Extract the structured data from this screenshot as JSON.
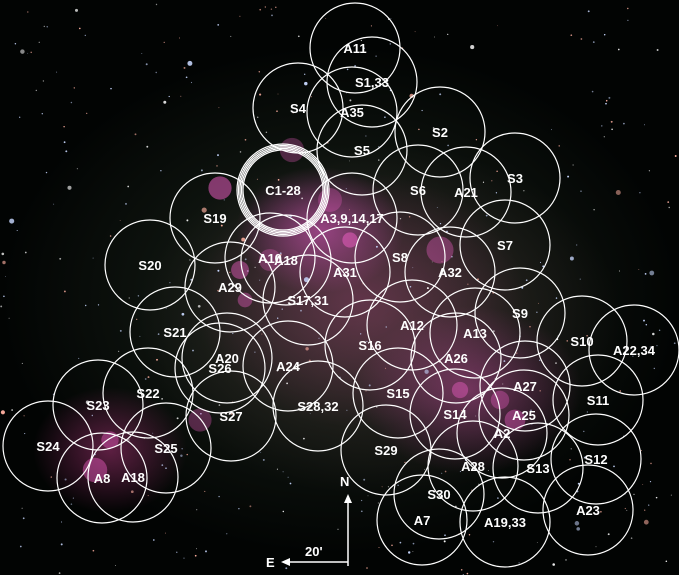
{
  "compass": {
    "north": "N",
    "east": "E",
    "scale": "20'"
  },
  "fields": [
    {
      "label": "A11"
    },
    {
      "label": "S1,33"
    },
    {
      "label": "S4"
    },
    {
      "label": "A35"
    },
    {
      "label": "S2"
    },
    {
      "label": "S5"
    },
    {
      "label": "C1-28"
    },
    {
      "label": "S6"
    },
    {
      "label": "A21"
    },
    {
      "label": "S3"
    },
    {
      "label": "S19"
    },
    {
      "label": "A3,9,14,17"
    },
    {
      "label": "S7"
    },
    {
      "label": "S20"
    },
    {
      "label": "A18"
    },
    {
      "label": "A10"
    },
    {
      "label": "S8"
    },
    {
      "label": "A31"
    },
    {
      "label": "A32"
    },
    {
      "label": "A29"
    },
    {
      "label": "S17,31"
    },
    {
      "label": "S9"
    },
    {
      "label": "S21"
    },
    {
      "label": "A12"
    },
    {
      "label": "A13"
    },
    {
      "label": "S10"
    },
    {
      "label": "A22,34"
    },
    {
      "label": "S16"
    },
    {
      "label": "A20"
    },
    {
      "label": "S26"
    },
    {
      "label": "A24"
    },
    {
      "label": "A26"
    },
    {
      "label": "S22"
    },
    {
      "label": "A27"
    },
    {
      "label": "S15"
    },
    {
      "label": "S23"
    },
    {
      "label": "S28,32"
    },
    {
      "label": "S27"
    },
    {
      "label": "S11"
    },
    {
      "label": "A25"
    },
    {
      "label": "S14"
    },
    {
      "label": "A2"
    },
    {
      "label": "S24"
    },
    {
      "label": "S25"
    },
    {
      "label": "S29"
    },
    {
      "label": "A28"
    },
    {
      "label": "S13"
    },
    {
      "label": "A8"
    },
    {
      "label": "A18"
    },
    {
      "label": "S12"
    },
    {
      "label": "S30"
    },
    {
      "label": "A23"
    },
    {
      "label": "A7"
    },
    {
      "label": "A19,33"
    }
  ],
  "colors": {
    "ring": "#ffffff",
    "label": "#ffffff",
    "nebula": "#e25ac8"
  }
}
